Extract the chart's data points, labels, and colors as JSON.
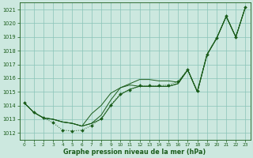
{
  "xlabel": "Graphe pression niveau de la mer (hPa)",
  "background_color": "#cce8df",
  "grid_color": "#89c4b8",
  "line_color": "#1a5c1a",
  "ylim": [
    1011.5,
    1021.5
  ],
  "xlim": [
    -0.5,
    23.5
  ],
  "yticks": [
    1012,
    1013,
    1014,
    1015,
    1016,
    1017,
    1018,
    1019,
    1020,
    1021
  ],
  "xticks": [
    0,
    1,
    2,
    3,
    4,
    5,
    6,
    7,
    8,
    9,
    10,
    11,
    12,
    13,
    14,
    15,
    16,
    17,
    18,
    19,
    20,
    21,
    22,
    23
  ],
  "s1": [
    1014.2,
    1013.5,
    1013.1,
    1013.0,
    1012.8,
    1012.7,
    1012.5,
    1012.7,
    1013.0,
    1014.0,
    1014.8,
    1015.2,
    1015.4,
    1015.4,
    1015.4,
    1015.4,
    1015.6,
    1016.6,
    1015.0,
    1017.7,
    1018.9,
    1020.5,
    1019.0,
    1021.2
  ],
  "s2": [
    1014.2,
    1013.5,
    1013.1,
    1013.0,
    1012.8,
    1012.7,
    1012.5,
    1012.7,
    1013.3,
    1014.4,
    1015.3,
    1015.6,
    1015.9,
    1015.9,
    1015.8,
    1015.8,
    1015.7,
    1016.6,
    1015.0,
    1017.7,
    1018.9,
    1020.5,
    1019.0,
    1021.2
  ],
  "s3": [
    1014.2,
    1013.5,
    1013.1,
    1013.0,
    1012.8,
    1012.7,
    1012.5,
    1013.4,
    1014.0,
    1014.9,
    1015.3,
    1015.5,
    1015.4,
    1015.4,
    1015.4,
    1015.4,
    1015.6,
    1016.6,
    1015.0,
    1017.7,
    1018.9,
    1020.5,
    1019.0,
    1021.2
  ],
  "s4": [
    1014.2,
    1013.5,
    1013.1,
    1012.75,
    1012.2,
    1012.15,
    1012.2,
    1012.55,
    1013.05,
    1014.05,
    1014.85,
    1015.15,
    1015.45,
    1015.45,
    1015.45,
    1015.5,
    1015.75,
    1016.65,
    1015.1,
    1017.75,
    1018.95,
    1020.55,
    1019.0,
    1021.2
  ]
}
